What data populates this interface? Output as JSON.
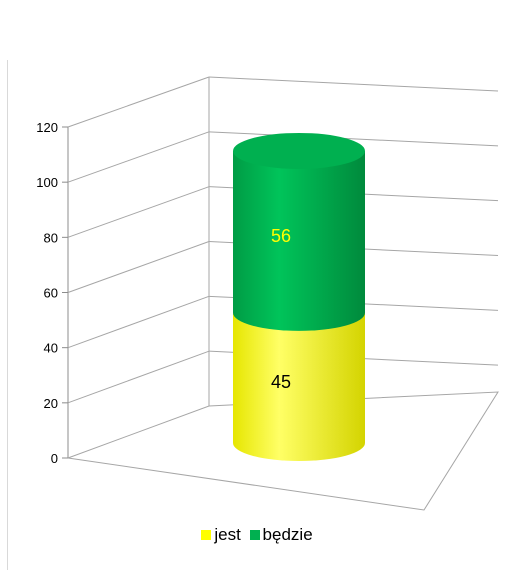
{
  "chart_data": {
    "type": "bar",
    "subtype": "stacked-3d-cylinder",
    "categories": [
      ""
    ],
    "series": [
      {
        "name": "jest",
        "values": [
          45
        ],
        "color": "#ffff00"
      },
      {
        "name": "będzie",
        "values": [
          56
        ],
        "color": "#00b050"
      }
    ],
    "ylim": [
      0,
      120
    ],
    "yticks": [
      0,
      20,
      40,
      60,
      80,
      100,
      120
    ],
    "grid": true,
    "legend": "bottom",
    "data_label_colors": {
      "jest": "#000000",
      "będzie": "#ffff00"
    }
  }
}
